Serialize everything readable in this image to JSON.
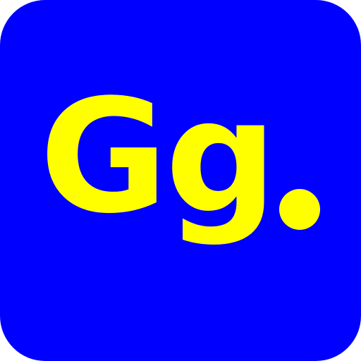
{
  "logo": {
    "upper_letter": "G",
    "lower_letter": "g",
    "dot_label": "."
  },
  "colors": {
    "background": "#0000ff",
    "foreground": "#ffff00"
  }
}
